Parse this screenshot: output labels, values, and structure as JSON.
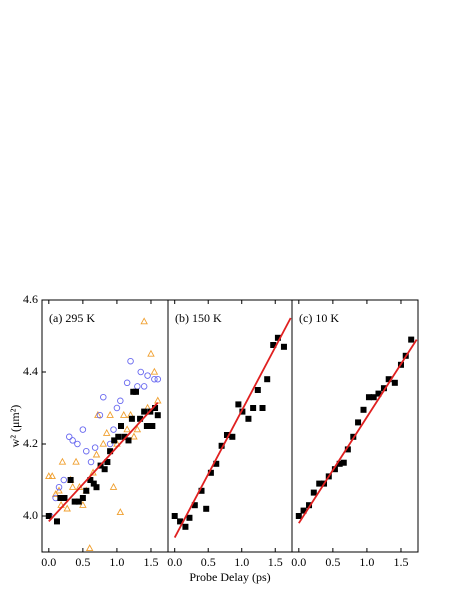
{
  "chart_data": [
    {
      "type": "scatter",
      "annotation": "(a) 295 K",
      "ylabel": "w² (μm²)",
      "xlim": [
        -0.1,
        1.75
      ],
      "ylim": [
        3.9,
        4.6
      ],
      "xticks": [
        {
          "value": 0,
          "label": "0.0"
        },
        0.5,
        {
          "value": 1,
          "label": "1.0"
        },
        1.5
      ],
      "yticks": [
        {
          "value": 4,
          "label": "4.0"
        },
        4.2,
        4.4,
        4.6
      ],
      "series": [
        {
          "marker": "triangle",
          "color": "#f0a030",
          "x": [
            0.0,
            0.05,
            0.1,
            0.15,
            0.18,
            0.2,
            0.27,
            0.32,
            0.35,
            0.4,
            0.45,
            0.5,
            0.55,
            0.6,
            0.65,
            0.7,
            0.72,
            0.8,
            0.85,
            0.9,
            0.95,
            1.0,
            1.05,
            1.1,
            1.15,
            1.2,
            1.25,
            1.3,
            1.4,
            1.45,
            1.5,
            1.55,
            1.6
          ],
          "values": [
            4.11,
            4.11,
            4.06,
            4.07,
            4.03,
            4.15,
            4.02,
            4.1,
            4.08,
            4.15,
            4.08,
            4.03,
            4.07,
            3.91,
            4.12,
            4.17,
            4.28,
            4.2,
            4.23,
            4.28,
            4.08,
            4.2,
            4.01,
            4.28,
            4.24,
            4.28,
            4.22,
            4.24,
            4.54,
            4.3,
            4.45,
            4.4,
            4.32
          ]
        },
        {
          "marker": "circle",
          "color": "#6a6af0",
          "x": [
            0.02,
            0.1,
            0.15,
            0.22,
            0.3,
            0.35,
            0.42,
            0.5,
            0.55,
            0.62,
            0.68,
            0.75,
            0.8,
            0.9,
            0.95,
            1.0,
            1.05,
            1.15,
            1.2,
            1.3,
            1.35,
            1.4,
            1.45,
            1.55,
            1.6
          ],
          "values": [
            4.0,
            4.05,
            4.08,
            4.1,
            4.22,
            4.21,
            4.2,
            4.24,
            4.18,
            4.15,
            4.19,
            4.28,
            4.33,
            4.2,
            4.24,
            4.3,
            4.32,
            4.37,
            4.43,
            4.36,
            4.4,
            4.36,
            4.39,
            4.38,
            4.38
          ]
        },
        {
          "marker": "square",
          "color": "#000000",
          "x": [
            0.0,
            0.12,
            0.17,
            0.23,
            0.32,
            0.38,
            0.44,
            0.5,
            0.55,
            0.61,
            0.66,
            0.7,
            0.76,
            0.82,
            0.86,
            0.9,
            0.96,
            1.02,
            1.06,
            1.11,
            1.17,
            1.22,
            1.24,
            1.28,
            1.34,
            1.4,
            1.44,
            1.49,
            1.52,
            1.56,
            1.6
          ],
          "values": [
            4.0,
            3.985,
            4.05,
            4.05,
            4.1,
            4.04,
            4.04,
            4.05,
            4.07,
            4.1,
            4.09,
            4.08,
            4.14,
            4.13,
            4.15,
            4.18,
            4.21,
            4.22,
            4.25,
            4.22,
            4.21,
            4.27,
            4.345,
            4.345,
            4.27,
            4.29,
            4.25,
            4.29,
            4.25,
            4.3,
            4.28
          ]
        },
        {
          "marker": "line",
          "color": "#e02020",
          "x": [
            0.0,
            1.6
          ],
          "values": [
            3.985,
            4.315
          ]
        }
      ]
    },
    {
      "type": "scatter",
      "annotation": "(b) 150 K",
      "xlabel": "Probe Delay (ps)",
      "xlim": [
        -0.1,
        1.75
      ],
      "ylim": [
        3.9,
        4.6
      ],
      "xticks": [
        {
          "value": 0,
          "label": "0.0"
        },
        0.5,
        {
          "value": 1,
          "label": "1.0"
        },
        1.5
      ],
      "series": [
        {
          "marker": "square",
          "color": "#000000",
          "x": [
            0.0,
            0.08,
            0.16,
            0.22,
            0.3,
            0.4,
            0.47,
            0.54,
            0.62,
            0.7,
            0.78,
            0.86,
            0.95,
            1.01,
            1.1,
            1.17,
            1.24,
            1.31,
            1.38,
            1.47,
            1.54,
            1.63
          ],
          "values": [
            4.0,
            3.985,
            3.97,
            3.995,
            4.03,
            4.07,
            4.02,
            4.12,
            4.145,
            4.195,
            4.225,
            4.22,
            4.31,
            4.29,
            4.27,
            4.3,
            4.35,
            4.3,
            4.38,
            4.475,
            4.495,
            4.47
          ]
        },
        {
          "marker": "line",
          "color": "#e02020",
          "x": [
            0.0,
            1.73
          ],
          "values": [
            3.94,
            4.55
          ]
        }
      ]
    },
    {
      "type": "scatter",
      "annotation": "(c) 10 K",
      "xlim": [
        -0.1,
        1.75
      ],
      "ylim": [
        3.9,
        4.6
      ],
      "xticks": [
        {
          "value": 0,
          "label": "0.0"
        },
        0.5,
        {
          "value": 1,
          "label": "1.0"
        },
        1.5
      ],
      "series": [
        {
          "marker": "square",
          "color": "#000000",
          "x": [
            0.0,
            0.07,
            0.15,
            0.22,
            0.3,
            0.37,
            0.44,
            0.53,
            0.6,
            0.66,
            0.72,
            0.8,
            0.87,
            0.95,
            1.03,
            1.1,
            1.17,
            1.25,
            1.32,
            1.41,
            1.5,
            1.57,
            1.65
          ],
          "values": [
            4.0,
            4.015,
            4.03,
            4.065,
            4.09,
            4.09,
            4.11,
            4.13,
            4.145,
            4.148,
            4.185,
            4.22,
            4.26,
            4.295,
            4.33,
            4.33,
            4.34,
            4.355,
            4.38,
            4.37,
            4.42,
            4.445,
            4.49
          ]
        },
        {
          "marker": "line",
          "color": "#e02020",
          "x": [
            0.0,
            1.73
          ],
          "values": [
            3.98,
            4.49
          ]
        }
      ]
    }
  ]
}
